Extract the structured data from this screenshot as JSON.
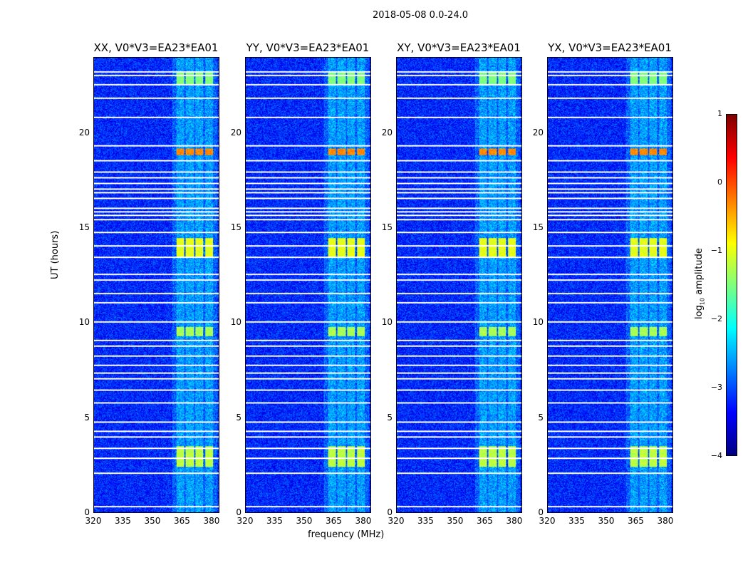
{
  "chart_data": {
    "type": "heatmap",
    "title": "2018-05-08 0.0-24.0",
    "panels": [
      {
        "title": "XX, V0*V3=EA23*EA01",
        "pol": "XX"
      },
      {
        "title": "YY, V0*V3=EA23*EA01",
        "pol": "YY"
      },
      {
        "title": "XY, V0*V3=EA23*EA01",
        "pol": "XY"
      },
      {
        "title": "YX, V0*V3=EA23*EA01",
        "pol": "YX"
      }
    ],
    "xlabel": "frequency (MHz)",
    "ylabel": "UT (hours)",
    "xlim": [
      320,
      384
    ],
    "ylim": [
      0,
      24
    ],
    "xticks": [
      "320",
      "335",
      "350",
      "365",
      "380"
    ],
    "xtick_values": [
      320,
      335,
      350,
      365,
      380
    ],
    "yticks": [
      "0",
      "5",
      "10",
      "15",
      "20"
    ],
    "ytick_values": [
      0,
      5,
      10,
      15,
      20
    ],
    "colorbar": {
      "label": "log10 amplitude",
      "label_main": "log",
      "label_sub": "10",
      "label_rest": " amplitude",
      "ticks": [
        "1",
        "0",
        "−1",
        "−2",
        "−3",
        "−4"
      ],
      "tick_values": [
        1,
        0,
        -1,
        -2,
        -3,
        -4
      ],
      "range": [
        -4,
        1
      ],
      "colormap": "jet"
    },
    "background_log_amplitude": -3.2,
    "bright_channels_mhz": [
      [
        362,
        366
      ],
      [
        367,
        371
      ],
      [
        372,
        376
      ],
      [
        377,
        381
      ]
    ],
    "flagged_ut_hours": [
      0.35,
      2.1,
      2.9,
      3.4,
      4.0,
      4.3,
      4.8,
      5.8,
      6.5,
      7.1,
      7.4,
      7.8,
      8.3,
      8.8,
      9.1,
      10.1,
      11.1,
      11.6,
      12.3,
      12.6,
      13.5,
      14.1,
      14.8,
      15.5,
      15.7,
      15.9,
      16.1,
      16.6,
      16.9,
      17.1,
      17.4,
      17.7,
      18.0,
      18.6,
      19.4,
      20.9,
      21.9,
      22.6,
      23.1,
      23.3
    ],
    "events": [
      {
        "ut": [
          18.9,
          19.2
        ],
        "level": -0.3
      },
      {
        "ut": [
          13.5,
          14.5
        ],
        "level": -1.0
      },
      {
        "ut": [
          2.4,
          3.5
        ],
        "level": -1.2
      },
      {
        "ut": [
          9.3,
          9.8
        ],
        "level": -1.3
      },
      {
        "ut": [
          22.6,
          23.3
        ],
        "level": -1.5
      }
    ]
  }
}
